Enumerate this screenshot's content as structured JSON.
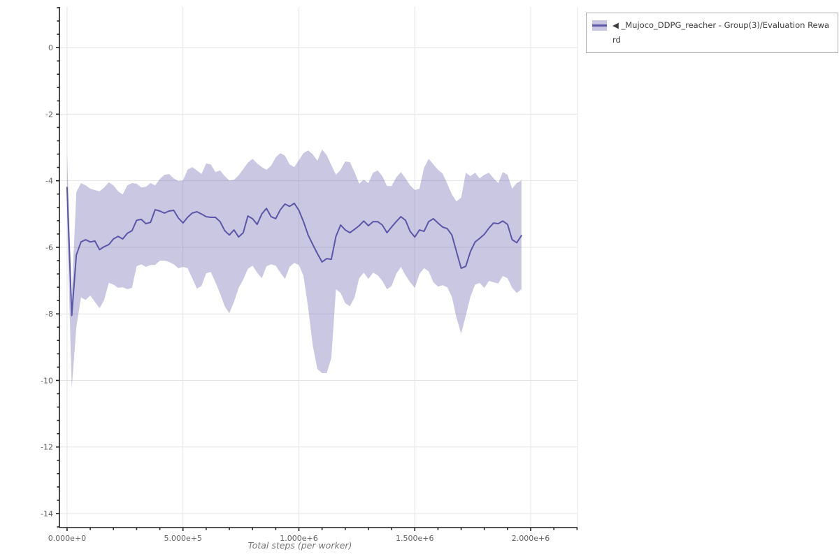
{
  "chart_data": {
    "type": "line",
    "title": "",
    "xlabel": "Total steps (per worker)",
    "ylabel": "",
    "grid": true,
    "legend_position": "outside-top-right",
    "colors": {
      "line": "#5b56a7",
      "band": "#c8c6e2",
      "grid": "#e4e4e4",
      "axis": "#1f1f1f",
      "tick_text": "#5f5f5f"
    },
    "xlim": [
      -33000,
      2202000
    ],
    "ylim": [
      -14.42,
      1.22
    ],
    "x_major_ticks": [
      0,
      500000,
      1000000,
      1500000,
      2000000
    ],
    "x_tick_labels": [
      "0.000e+0",
      "5.000e+5",
      "1.000e+6",
      "1.500e+6",
      "2.000e+6"
    ],
    "x_minor_step": 100000,
    "x_minor_max": 2200000,
    "y_major_ticks": [
      0,
      -2,
      -4,
      -6,
      -8,
      -10,
      -12,
      -14
    ],
    "y_tick_labels": [
      "0",
      "-2",
      "-4",
      "-6",
      "-8",
      "-10",
      "-12",
      "-14"
    ],
    "y_minor_step": 0.4,
    "series": [
      {
        "name": "◀ _Mujoco_DDPG_reacher - Group(3)/Evaluation Reward",
        "x_start": 0,
        "x_step": 20000,
        "mean": [
          -4.2,
          -8.05,
          -6.23,
          -5.84,
          -5.77,
          -5.84,
          -5.81,
          -6.07,
          -5.98,
          -5.92,
          -5.75,
          -5.67,
          -5.75,
          -5.58,
          -5.5,
          -5.19,
          -5.16,
          -5.29,
          -5.25,
          -4.87,
          -4.91,
          -4.97,
          -4.91,
          -4.89,
          -5.12,
          -5.27,
          -5.1,
          -4.97,
          -4.93,
          -5.0,
          -5.08,
          -5.1,
          -5.1,
          -5.23,
          -5.5,
          -5.63,
          -5.48,
          -5.69,
          -5.56,
          -5.06,
          -5.14,
          -5.31,
          -5.0,
          -4.83,
          -5.08,
          -5.14,
          -4.87,
          -4.7,
          -4.77,
          -4.68,
          -4.89,
          -5.23,
          -5.63,
          -5.92,
          -6.19,
          -6.44,
          -6.34,
          -6.36,
          -5.67,
          -5.33,
          -5.48,
          -5.56,
          -5.46,
          -5.35,
          -5.21,
          -5.35,
          -5.23,
          -5.23,
          -5.33,
          -5.56,
          -5.39,
          -5.23,
          -5.08,
          -5.19,
          -5.52,
          -5.69,
          -5.48,
          -5.52,
          -5.23,
          -5.14,
          -5.27,
          -5.39,
          -5.44,
          -5.63,
          -6.13,
          -6.63,
          -6.57,
          -6.13,
          -5.84,
          -5.73,
          -5.61,
          -5.42,
          -5.27,
          -5.29,
          -5.21,
          -5.31,
          -5.77,
          -5.86,
          -5.65
        ],
        "upper": [
          -3.15,
          -7.45,
          -4.35,
          -4.07,
          -4.14,
          -4.24,
          -4.28,
          -4.32,
          -4.2,
          -4.05,
          -4.14,
          -4.32,
          -4.41,
          -4.14,
          -4.07,
          -4.09,
          -4.2,
          -4.18,
          -4.07,
          -4.14,
          -3.95,
          -3.82,
          -3.8,
          -3.93,
          -4.01,
          -3.99,
          -3.67,
          -3.59,
          -3.69,
          -3.8,
          -3.48,
          -3.51,
          -3.74,
          -3.69,
          -3.86,
          -3.99,
          -3.97,
          -3.84,
          -3.65,
          -3.46,
          -3.34,
          -3.48,
          -3.59,
          -3.67,
          -3.55,
          -3.3,
          -3.17,
          -3.25,
          -3.51,
          -3.59,
          -3.38,
          -3.17,
          -3.09,
          -3.21,
          -3.4,
          -3.06,
          -3.23,
          -3.53,
          -3.82,
          -3.67,
          -3.42,
          -3.44,
          -3.74,
          -4.09,
          -3.97,
          -4.07,
          -3.76,
          -3.69,
          -3.86,
          -4.16,
          -4.16,
          -3.9,
          -3.74,
          -3.93,
          -4.14,
          -4.28,
          -4.24,
          -3.61,
          -3.34,
          -3.51,
          -3.67,
          -3.78,
          -4.09,
          -4.41,
          -4.62,
          -4.51,
          -3.76,
          -3.86,
          -3.76,
          -3.93,
          -3.82,
          -3.76,
          -3.93,
          -4.07,
          -3.74,
          -3.82,
          -4.24,
          -4.07,
          -3.99
        ],
        "lower": [
          -5.1,
          -10.24,
          -8.4,
          -7.51,
          -7.58,
          -7.45,
          -7.64,
          -7.83,
          -7.58,
          -7.07,
          -7.12,
          -7.22,
          -7.2,
          -7.26,
          -7.22,
          -6.57,
          -6.51,
          -6.59,
          -6.53,
          -6.53,
          -6.4,
          -6.4,
          -6.44,
          -6.51,
          -6.63,
          -6.59,
          -6.63,
          -6.93,
          -7.24,
          -7.16,
          -6.78,
          -6.74,
          -7.05,
          -7.39,
          -7.77,
          -7.98,
          -7.64,
          -7.22,
          -6.97,
          -6.65,
          -6.55,
          -6.76,
          -6.93,
          -6.57,
          -6.51,
          -6.55,
          -6.76,
          -6.95,
          -6.59,
          -6.47,
          -6.53,
          -6.86,
          -7.81,
          -8.96,
          -9.66,
          -9.78,
          -9.78,
          -9.32,
          -7.26,
          -7.37,
          -7.68,
          -7.77,
          -7.51,
          -6.93,
          -6.76,
          -6.95,
          -6.76,
          -6.84,
          -7.01,
          -7.26,
          -7.16,
          -6.8,
          -6.59,
          -6.84,
          -7.05,
          -7.22,
          -6.8,
          -6.63,
          -6.72,
          -7.05,
          -7.18,
          -7.14,
          -7.2,
          -7.49,
          -8.12,
          -8.59,
          -8.06,
          -7.49,
          -7.12,
          -7.07,
          -7.22,
          -7.01,
          -7.05,
          -7.09,
          -6.86,
          -6.93,
          -7.22,
          -7.37,
          -7.26
        ]
      }
    ]
  }
}
